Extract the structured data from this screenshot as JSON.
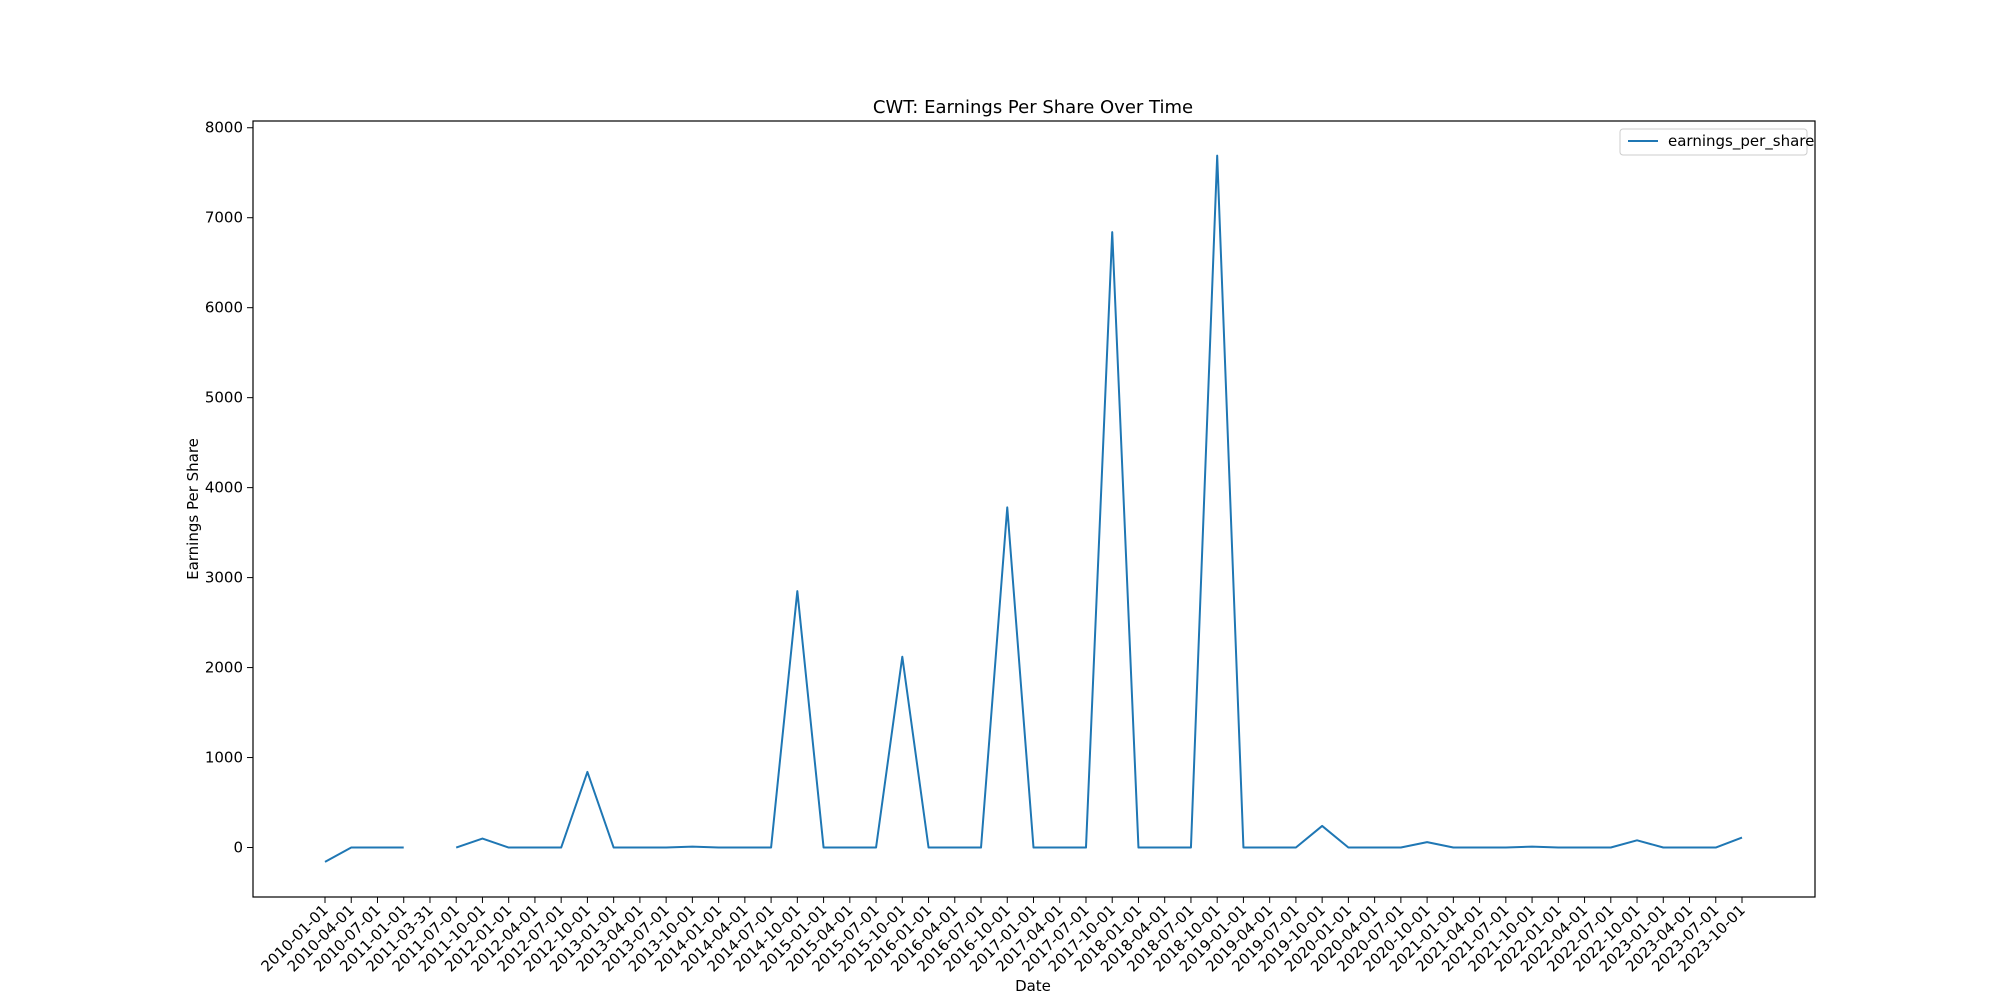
{
  "chart_data": {
    "type": "line",
    "title": "CWT: Earnings Per Share Over Time",
    "xlabel": "Date",
    "ylabel": "Earnings Per Share",
    "ylim": [
      -550,
      8075
    ],
    "yticks": [
      0,
      1000,
      2000,
      3000,
      4000,
      5000,
      6000,
      7000,
      8000
    ],
    "ytick_labels": [
      "0",
      "1000",
      "2000",
      "3000",
      "4000",
      "5000",
      "6000",
      "7000",
      "8000"
    ],
    "grid": false,
    "legend": {
      "position": "top-right"
    },
    "categories": [
      "2010-01-01",
      "2010-04-01",
      "2010-07-01",
      "2011-01-01",
      "2011-03-31",
      "2011-07-01",
      "2011-10-01",
      "2012-01-01",
      "2012-04-01",
      "2012-07-01",
      "2012-10-01",
      "2013-01-01",
      "2013-04-01",
      "2013-07-01",
      "2013-10-01",
      "2014-01-01",
      "2014-04-01",
      "2014-07-01",
      "2014-10-01",
      "2015-01-01",
      "2015-04-01",
      "2015-07-01",
      "2015-10-01",
      "2016-01-01",
      "2016-04-01",
      "2016-07-01",
      "2016-10-01",
      "2017-01-01",
      "2017-04-01",
      "2017-07-01",
      "2017-10-01",
      "2018-01-01",
      "2018-04-01",
      "2018-07-01",
      "2018-10-01",
      "2019-01-01",
      "2019-04-01",
      "2019-07-01",
      "2019-10-01",
      "2020-01-01",
      "2020-04-01",
      "2020-07-01",
      "2020-10-01",
      "2021-01-01",
      "2021-04-01",
      "2021-07-01",
      "2021-10-01",
      "2022-01-01",
      "2022-04-01",
      "2022-07-01",
      "2022-10-01",
      "2023-01-01",
      "2023-04-01",
      "2023-07-01",
      "2023-10-01"
    ],
    "series": [
      {
        "name": "earnings_per_share",
        "color": "#1f77b4",
        "values": [
          -160,
          0,
          0,
          0,
          null,
          0,
          100,
          0,
          0,
          0,
          840,
          0,
          0,
          0,
          10,
          0,
          0,
          0,
          2850,
          0,
          0,
          0,
          2120,
          0,
          0,
          0,
          3780,
          0,
          0,
          0,
          6840,
          0,
          0,
          0,
          7690,
          0,
          0,
          0,
          240,
          0,
          0,
          0,
          60,
          0,
          0,
          0,
          10,
          0,
          0,
          0,
          80,
          0,
          0,
          0,
          110
        ]
      }
    ]
  }
}
